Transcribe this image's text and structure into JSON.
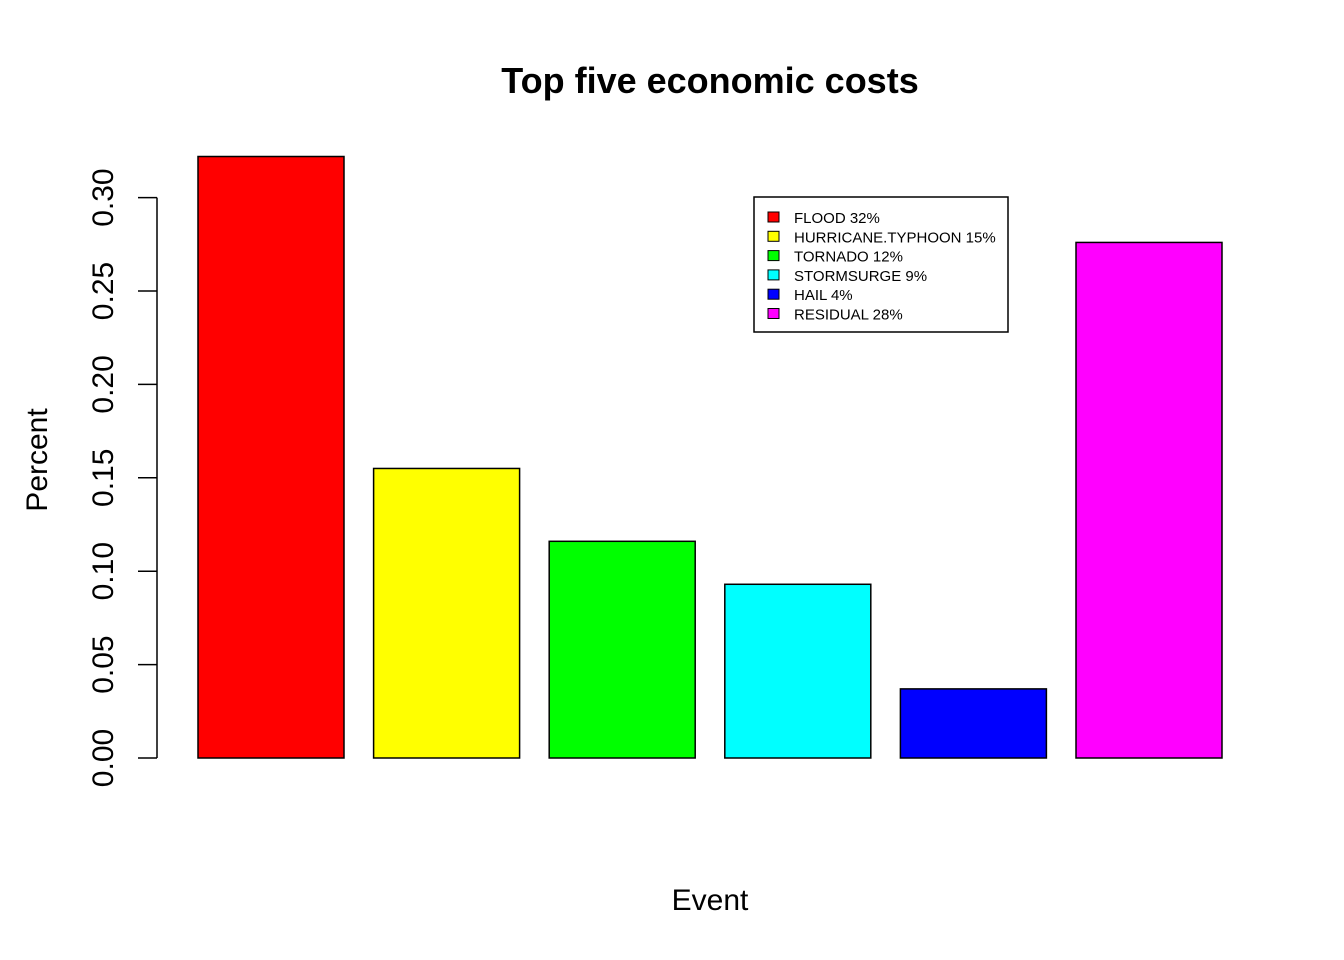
{
  "chart_data": {
    "type": "bar",
    "title": "Top five economic costs",
    "xlabel": "Event",
    "ylabel": "Percent",
    "categories": [
      "FLOOD",
      "HURRICANE.TYPHOON",
      "TORNADO",
      "STORMSURGE",
      "HAIL",
      "RESIDUAL"
    ],
    "values": [
      0.322,
      0.155,
      0.116,
      0.093,
      0.037,
      0.276
    ],
    "colors": [
      "#ff0000",
      "#ffff00",
      "#00ff00",
      "#00ffff",
      "#0000ff",
      "#ff00ff"
    ],
    "ylim": [
      0,
      0.3
    ],
    "yticks": [
      "0.00",
      "0.05",
      "0.10",
      "0.15",
      "0.20",
      "0.25",
      "0.30"
    ],
    "grid": false,
    "legend": {
      "placement": "top-right",
      "entries": [
        "FLOOD 32%",
        "HURRICANE.TYPHOON 15%",
        "TORNADO 12%",
        "STORMSURGE 9%",
        "HAIL 4%",
        "RESIDUAL 28%"
      ]
    }
  }
}
